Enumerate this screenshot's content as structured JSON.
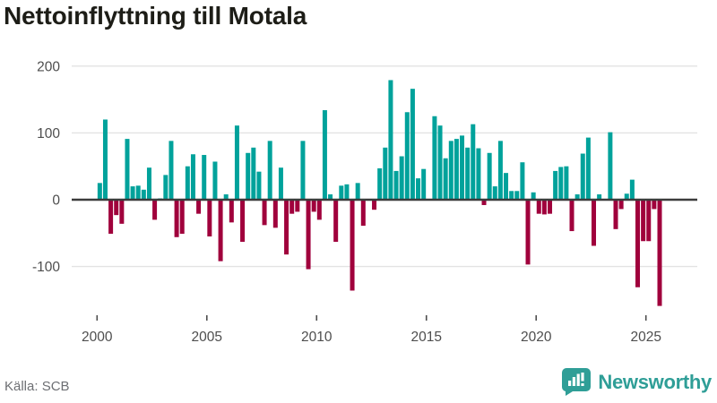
{
  "header": {
    "title": "Nettoinflyttning till Motala"
  },
  "footer": {
    "source": "Källa: SCB",
    "brand": "Newsworthy"
  },
  "colors": {
    "positive_bar": "#00a29b",
    "negative_bar": "#a0003c",
    "gridline": "#e3e3e3",
    "zero_line": "#3c3c3c",
    "axis_text": "#4e4e4e",
    "title_text": "#1d1d17",
    "source_text": "#6d6f73",
    "brand_teal": "#2f9e97"
  },
  "chart_data": {
    "type": "bar",
    "title": "Nettoinflyttning till Motala",
    "xlabel": "",
    "ylabel": "",
    "frequency": "quarterly",
    "period_start": "2000 Q1",
    "period_end": "2025 Q3",
    "ylim": [
      -175,
      210
    ],
    "grid": "horizontal",
    "legend": "none",
    "y_ticks": [
      {
        "label": "200",
        "value": 200
      },
      {
        "label": "100",
        "value": 100
      },
      {
        "label": "0",
        "value": 0
      },
      {
        "label": "-100",
        "value": -100
      }
    ],
    "x_ticks": [
      {
        "label": "2000",
        "year": 2000
      },
      {
        "label": "2005",
        "year": 2005
      },
      {
        "label": "2010",
        "year": 2010
      },
      {
        "label": "2015",
        "year": 2015
      },
      {
        "label": "2020",
        "year": 2020
      },
      {
        "label": "2025",
        "year": 2025
      }
    ],
    "series": [
      {
        "name": "Nettoinflyttning",
        "start_year": 2000,
        "start_quarter": 1,
        "values": [
          25,
          120,
          -51,
          -23,
          -36,
          91,
          20,
          21,
          15,
          48,
          -30,
          2,
          37,
          88,
          -56,
          -51,
          50,
          68,
          -21,
          67,
          -55,
          57,
          -92,
          8,
          -34,
          111,
          -63,
          70,
          78,
          42,
          -38,
          88,
          -42,
          48,
          -82,
          -21,
          -18,
          88,
          -104,
          -18,
          -30,
          134,
          8,
          -63,
          21,
          23,
          -136,
          25,
          -39,
          0,
          -15,
          47,
          78,
          179,
          43,
          65,
          131,
          166,
          32,
          46,
          0,
          125,
          111,
          62,
          88,
          91,
          96,
          78,
          113,
          77,
          -8,
          70,
          20,
          88,
          40,
          13,
          13,
          56,
          -97,
          11,
          -21,
          -22,
          -21,
          43,
          49,
          50,
          -47,
          8,
          69,
          93,
          -69,
          8,
          0,
          101,
          -44,
          -14,
          9,
          30,
          -131,
          -62,
          -62,
          -14,
          -159
        ]
      }
    ]
  }
}
